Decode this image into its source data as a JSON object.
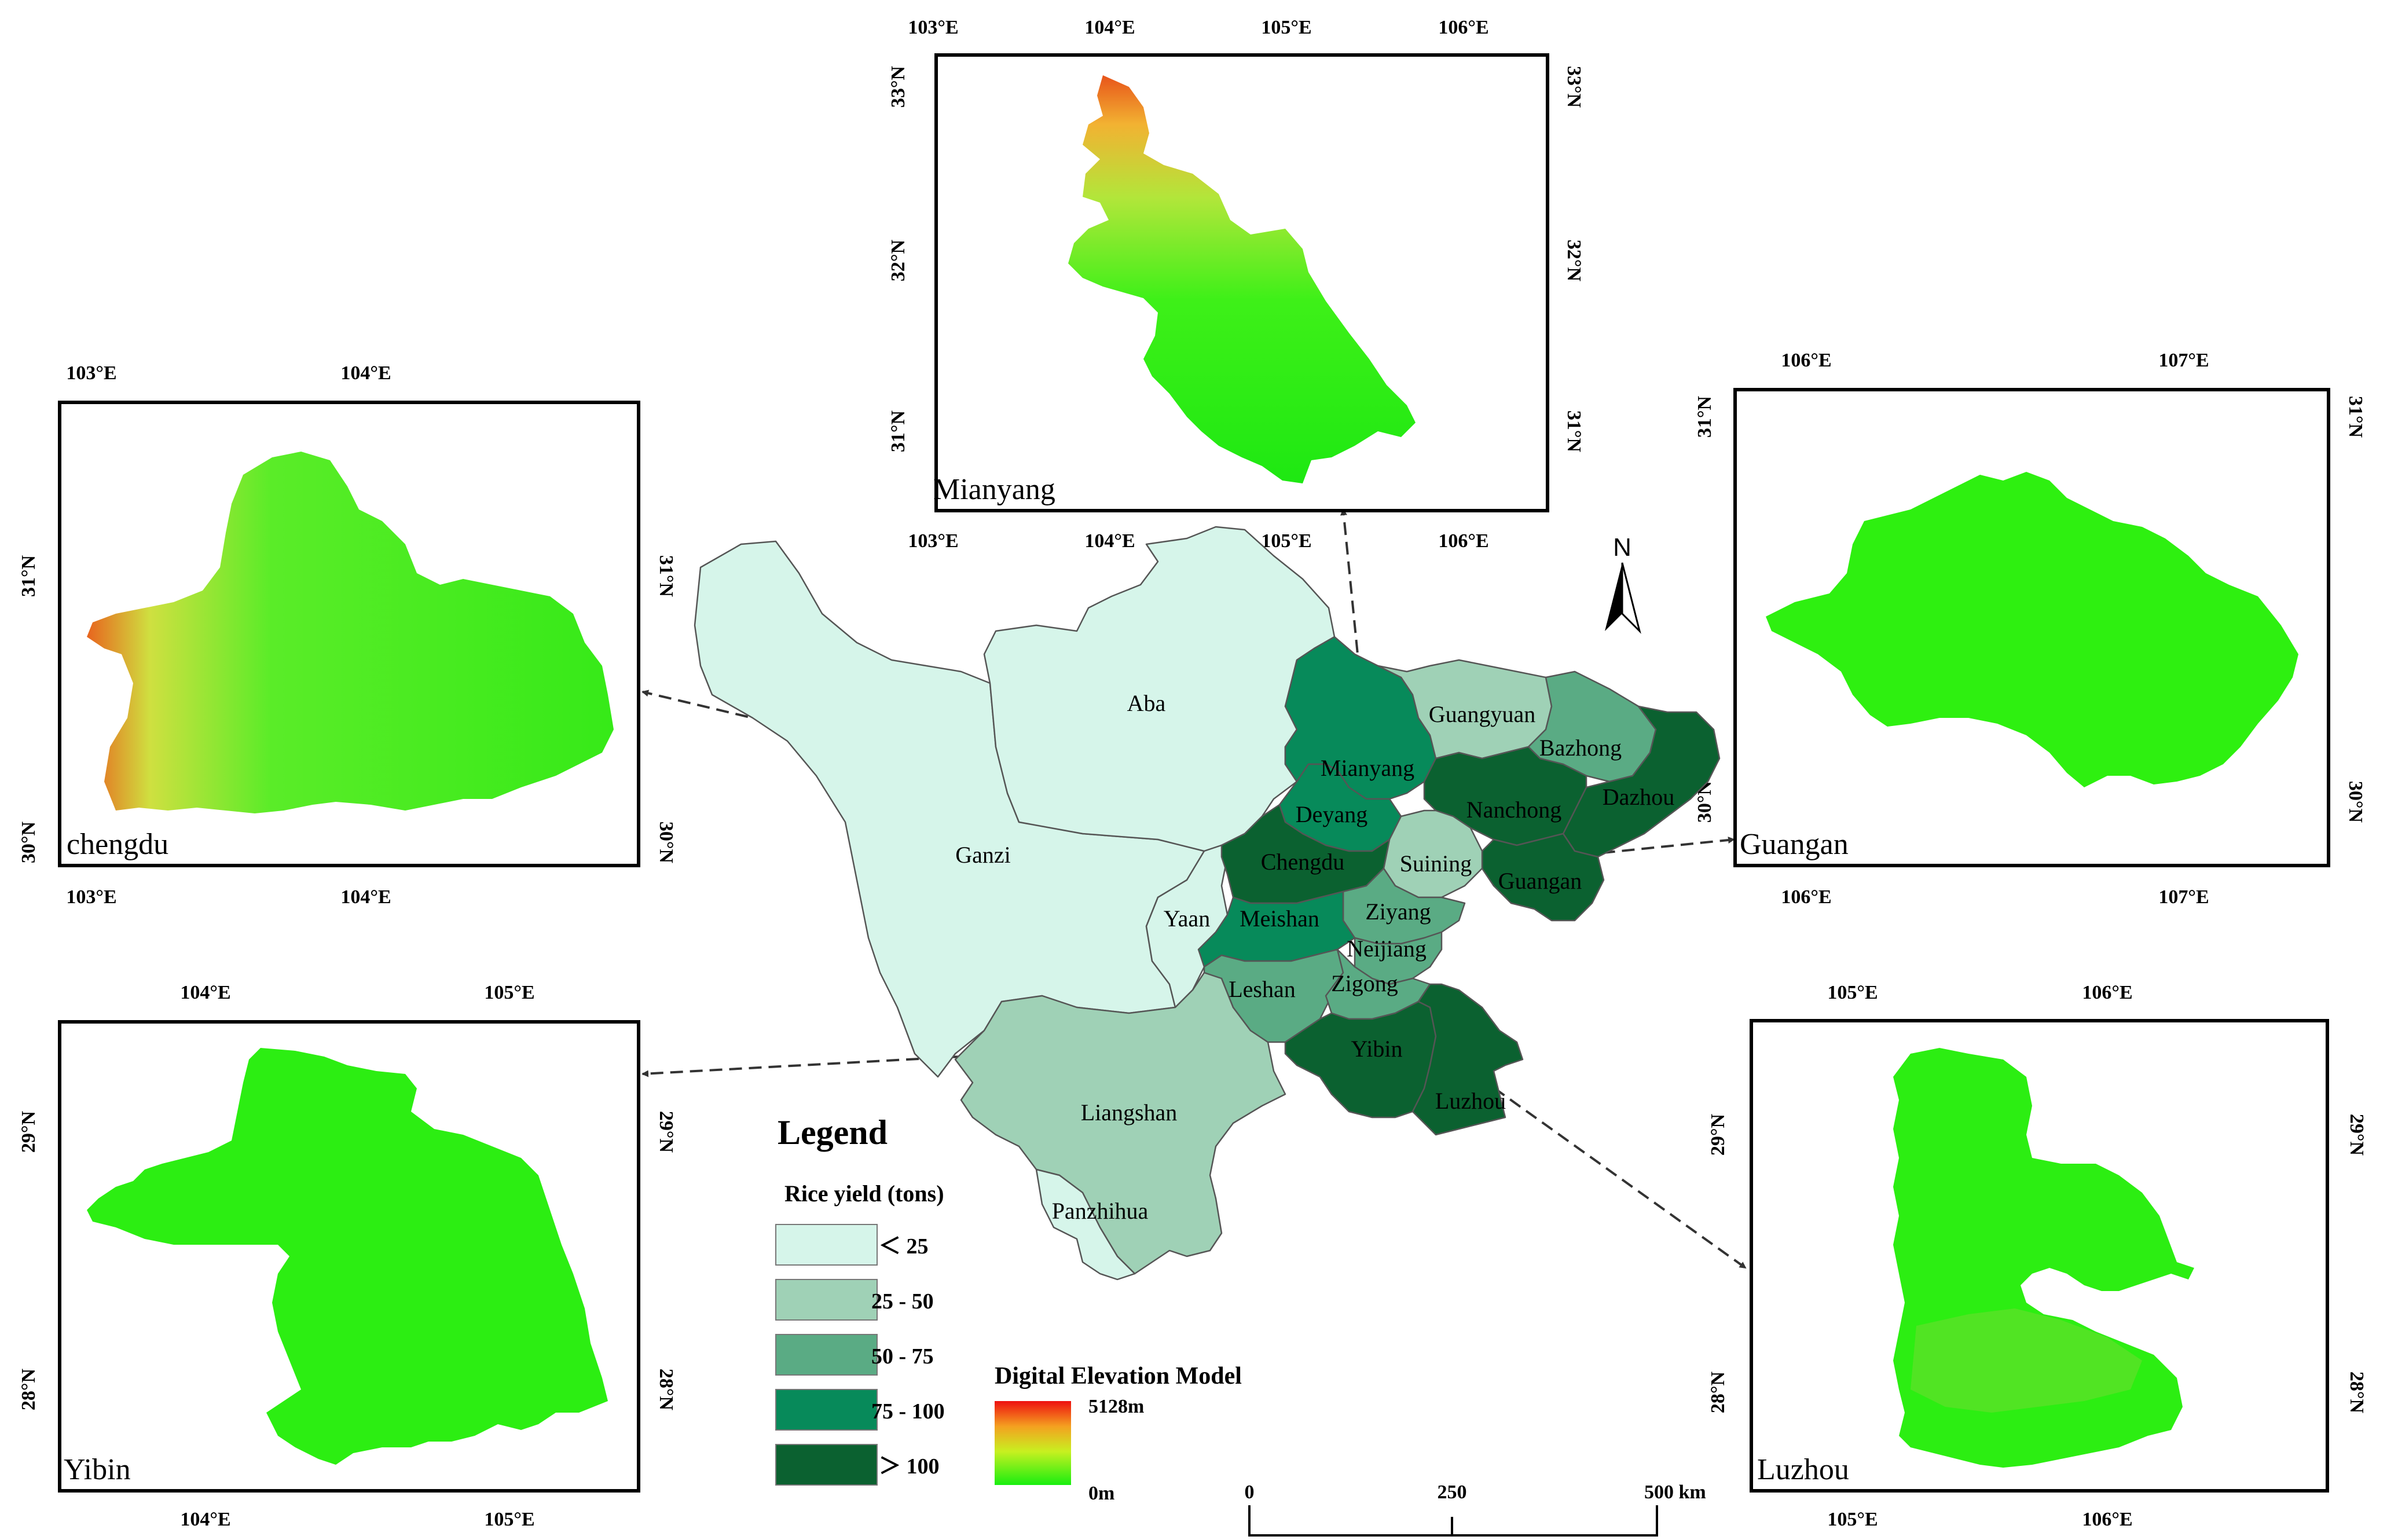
{
  "insets": {
    "mianyang": {
      "name": "Mianyang",
      "lon_ticks": [
        "103°E",
        "104°E",
        "105°E",
        "106°E"
      ],
      "lat_ticks": [
        "33°N",
        "32°N",
        "31°N"
      ]
    },
    "chengdu": {
      "name": "chengdu",
      "lon_ticks": [
        "103°E",
        "104°E"
      ],
      "lat_ticks": [
        "31°N",
        "30°N"
      ]
    },
    "guangan": {
      "name": "Guangan",
      "lon_ticks": [
        "106°E",
        "107°E"
      ],
      "lat_ticks": [
        "31°N",
        "30°N"
      ]
    },
    "yibin": {
      "name": "Yibin",
      "lon_ticks": [
        "104°E",
        "105°E"
      ],
      "lat_ticks": [
        "29°N",
        "28°N"
      ]
    },
    "luzhou": {
      "name": "Luzhou",
      "lon_ticks": [
        "105°E",
        "106°E"
      ],
      "lat_ticks": [
        "29°N",
        "28°N"
      ]
    }
  },
  "regions": [
    {
      "name": "Aba",
      "class": 0
    },
    {
      "name": "Ganzi",
      "class": 0
    },
    {
      "name": "Yaan",
      "class": 0
    },
    {
      "name": "Panzhihua",
      "class": 0
    },
    {
      "name": "Liangshan",
      "class": 1
    },
    {
      "name": "Guangyuan",
      "class": 1
    },
    {
      "name": "Bazhong",
      "class": 2
    },
    {
      "name": "Mianyang",
      "class": 3
    },
    {
      "name": "Nanchong",
      "class": 4
    },
    {
      "name": "Dazhou",
      "class": 4
    },
    {
      "name": "Deyang",
      "class": 3
    },
    {
      "name": "Chengdu",
      "class": 4
    },
    {
      "name": "Suining",
      "class": 1
    },
    {
      "name": "Guangan",
      "class": 4
    },
    {
      "name": "Meishan",
      "class": 3
    },
    {
      "name": "Ziyang",
      "class": 2
    },
    {
      "name": "Neijiang",
      "class": 2
    },
    {
      "name": "Leshan",
      "class": 2
    },
    {
      "name": "Zigong",
      "class": 2
    },
    {
      "name": "Yibin",
      "class": 4
    },
    {
      "name": "Luzhou",
      "class": 4
    }
  ],
  "legend": {
    "title": "Legend",
    "subtitle": "Rice yield (tons)",
    "classes": [
      {
        "label": "＜ 25",
        "color": "#d6f5ea"
      },
      {
        "label": "25 - 50",
        "color": "#9fd1b6"
      },
      {
        "label": "50 - 75",
        "color": "#5aab84"
      },
      {
        "label": "75 - 100",
        "color": "#078a5a"
      },
      {
        "label": "＞ 100",
        "color": "#0b6130"
      }
    ]
  },
  "dem": {
    "title": "Digital Elevation Model",
    "max_label": "5128m",
    "min_label": "0m"
  },
  "scale_bar": {
    "labels": [
      "0",
      "250",
      "500 km"
    ]
  },
  "north_arrow": {
    "label": "N"
  }
}
